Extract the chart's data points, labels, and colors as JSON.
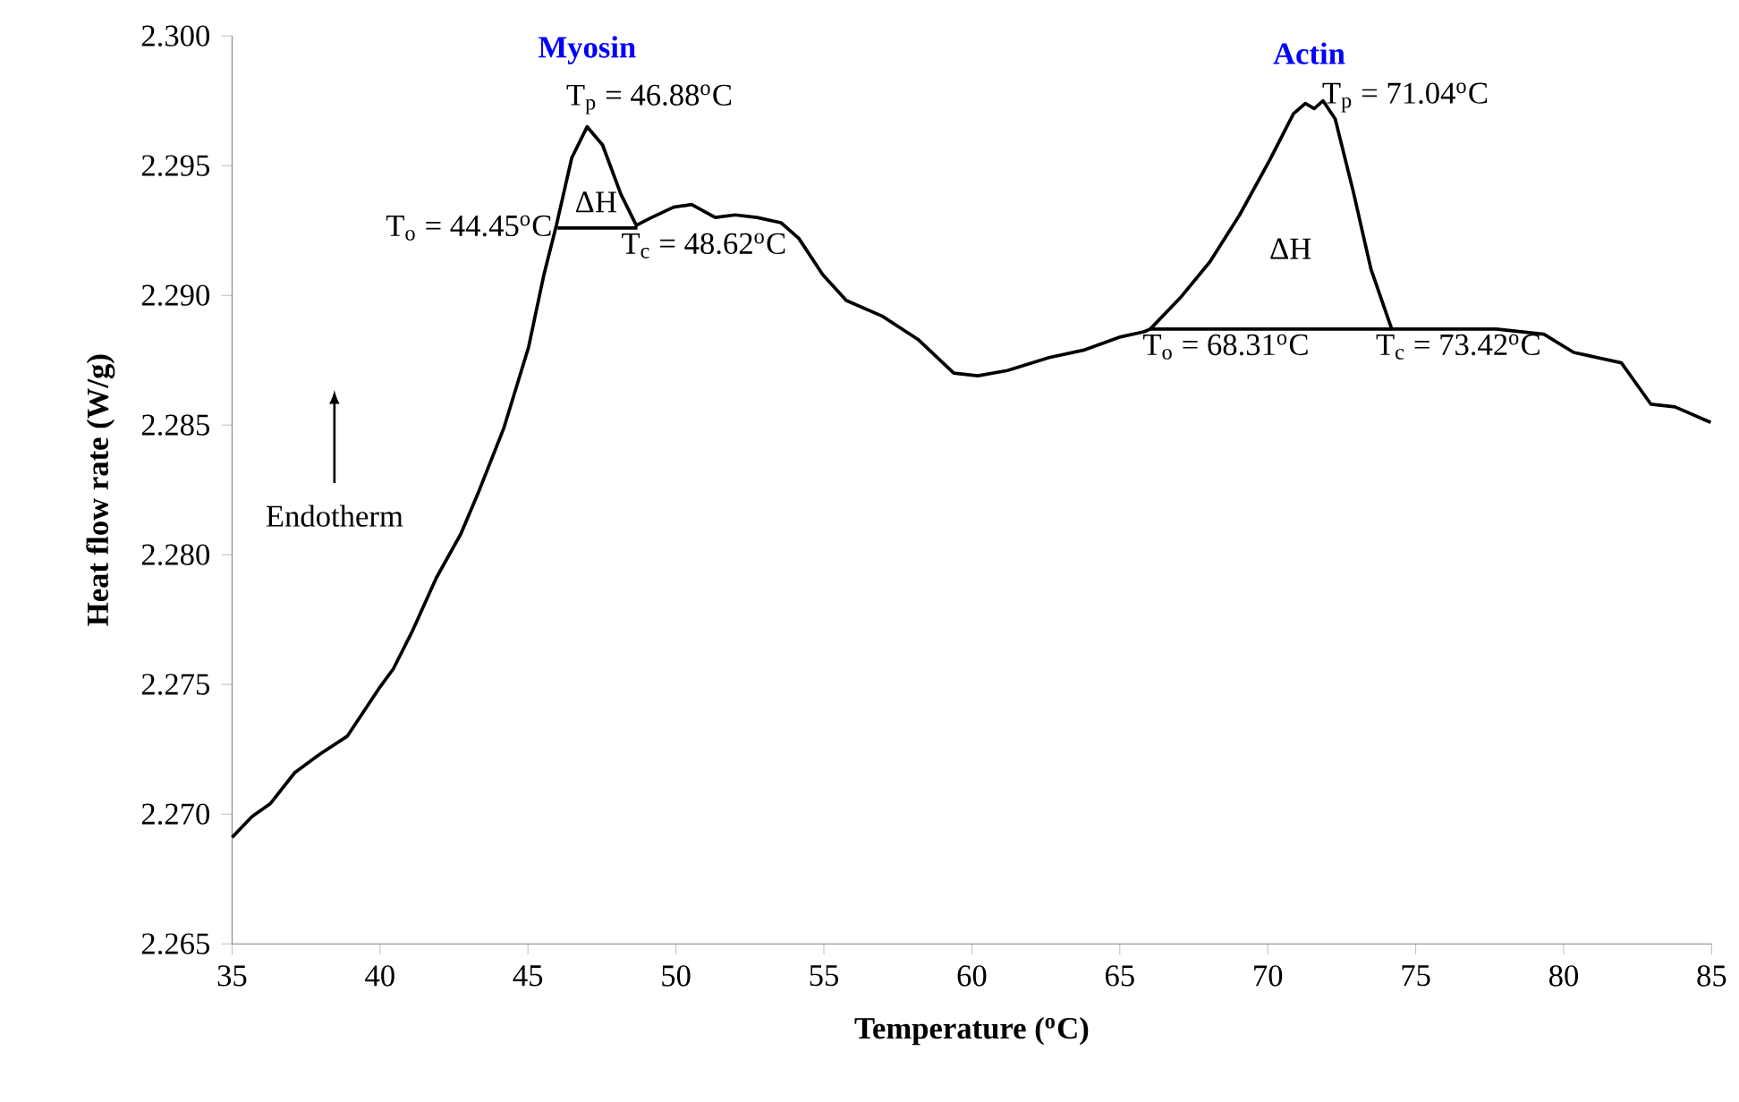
{
  "chart_data": {
    "type": "line",
    "xlabel": "Temperature ($^{o}$C)",
    "ylabel": "Heat flow rate (W/g)",
    "xlim": [
      35,
      85
    ],
    "ylim": [
      2.265,
      2.3
    ],
    "xticks": [
      35,
      40,
      45,
      50,
      55,
      60,
      65,
      70,
      75,
      80,
      85
    ],
    "yticks": [
      {
        "value": 2.265,
        "label": "2.265"
      },
      {
        "value": 2.27,
        "label": "2.270"
      },
      {
        "value": 2.275,
        "label": "2.275"
      },
      {
        "value": 2.28,
        "label": "2.280"
      },
      {
        "value": 2.285,
        "label": "2.285"
      },
      {
        "value": 2.29,
        "label": "2.290"
      },
      {
        "value": 2.295,
        "label": "2.295"
      },
      {
        "value": 2.3,
        "label": "2.300"
      }
    ],
    "marker": "none",
    "line_style": "solid",
    "series": [
      {
        "color": "#000000",
        "x": [
          35,
          35.67,
          36.29,
          37.12,
          37.95,
          38.89,
          40.0,
          40.45,
          41.07,
          41.9,
          42.73,
          43.36,
          44.19,
          45.02,
          45.54,
          45.96,
          46.48,
          47.0,
          47.52,
          48.14,
          48.66,
          49.18,
          49.92,
          50.53,
          51.33,
          52.0,
          52.74,
          53.55,
          54.15,
          54.96,
          55.76,
          56.97,
          58.18,
          59.39,
          60.2,
          61.2,
          62.61,
          63.82,
          65.03,
          65.83,
          66.03,
          67.04,
          68.05,
          69.05,
          70.06,
          70.87,
          71.27,
          71.57,
          71.87,
          72.28,
          72.89,
          73.49,
          74.19,
          75.5,
          77.72,
          79.33,
          80.34,
          81.95,
          82.95,
          83.76,
          84.97
        ],
        "values": [
          2.2691,
          2.2699,
          2.2704,
          2.2716,
          2.2723,
          2.273,
          2.2749,
          2.2756,
          2.277,
          2.2791,
          2.2808,
          2.2825,
          2.2849,
          2.288,
          2.2908,
          2.2927,
          2.2953,
          2.2965,
          2.2958,
          2.2939,
          2.2927,
          2.293,
          2.2934,
          2.2935,
          2.293,
          2.2931,
          2.293,
          2.2928,
          2.2922,
          2.2908,
          2.2898,
          2.2892,
          2.2883,
          2.287,
          2.2869,
          2.2871,
          2.2876,
          2.2879,
          2.2884,
          2.2886,
          2.2887,
          2.2899,
          2.2913,
          2.2931,
          2.2952,
          2.297,
          2.2974,
          2.2972,
          2.2975,
          2.2968,
          2.294,
          2.291,
          2.2887,
          2.2887,
          2.2887,
          2.2885,
          2.2878,
          2.2874,
          2.2858,
          2.2857,
          2.2851
        ]
      },
      {
        "color": "#000000",
        "x": [
          46.0,
          48.7
        ],
        "values": [
          2.2926,
          2.2926
        ]
      },
      {
        "color": "#000000",
        "x": [
          66.0,
          74.2
        ],
        "values": [
          2.2887,
          2.2887
        ]
      }
    ],
    "annotations": [
      "**Myosin**",
      {
        "text": "T$_{p}$ = 46.88$^{o}$C",
        "x": 47.0,
        "y": 2.2966
      },
      {
        "text": "T$_{o}$ = 44.45$^{o}$C",
        "x": 46.0,
        "y": 2.2926
      },
      "ΔH",
      {
        "text": "T$_{c}$ = 48.62$^{o}$C",
        "x": 48.7,
        "y": 2.2926
      },
      "**Actin**",
      {
        "text": "T$_{p}$ = 71.04$^{o}$C",
        "x": 71.9,
        "y": 2.2975
      },
      "ΔH",
      {
        "text": "T$_{o}$ = 68.31$^{o}$C",
        "x": 66.0,
        "y": 2.2887
      },
      {
        "text": "T$_{c}$ = 73.42$^{o}$C",
        "x": 74.2,
        "y": 2.2887
      },
      "Endotherm"
    ]
  }
}
